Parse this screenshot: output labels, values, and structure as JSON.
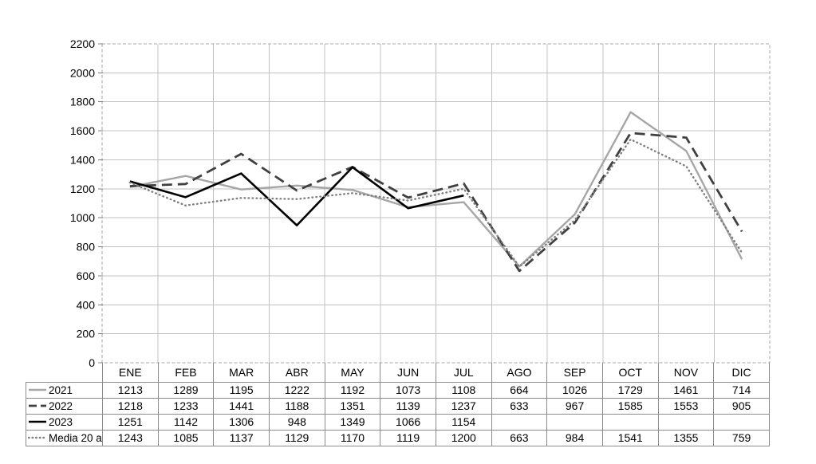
{
  "chart_data": {
    "type": "line",
    "title": "",
    "xlabel": "",
    "ylabel": "",
    "categories": [
      "ENE",
      "FEB",
      "MAR",
      "ABR",
      "MAY",
      "JUN",
      "JUL",
      "AGO",
      "SEP",
      "OCT",
      "NOV",
      "DIC"
    ],
    "series": [
      {
        "name": "2021",
        "values": [
          1213,
          1289,
          1195,
          1222,
          1192,
          1073,
          1108,
          664,
          1026,
          1729,
          1461,
          714
        ],
        "color": "#a6a6a6",
        "dash": "solid",
        "width": 2.4
      },
      {
        "name": "2022",
        "values": [
          1218,
          1233,
          1441,
          1188,
          1351,
          1139,
          1237,
          633,
          967,
          1585,
          1553,
          905
        ],
        "color": "#404040",
        "dash": "dashed",
        "width": 2.8
      },
      {
        "name": "2023",
        "values": [
          1251,
          1142,
          1306,
          948,
          1349,
          1066,
          1154,
          null,
          null,
          null,
          null,
          null
        ],
        "color": "#000000",
        "dash": "solid",
        "width": 2.6
      },
      {
        "name": "Media 20 a",
        "values": [
          1243,
          1085,
          1137,
          1129,
          1170,
          1119,
          1200,
          663,
          984,
          1541,
          1355,
          759
        ],
        "color": "#7f7f7f",
        "dash": "dotted",
        "width": 2.4
      }
    ],
    "ylim": [
      0,
      2200
    ],
    "ytick_step": 200,
    "grid": true,
    "legend_position": "table-left",
    "gridline_color": "#c0c0c0",
    "plot_border_color": "#a6a6a6",
    "tick_color": "#808080",
    "data_table_shown": true
  }
}
